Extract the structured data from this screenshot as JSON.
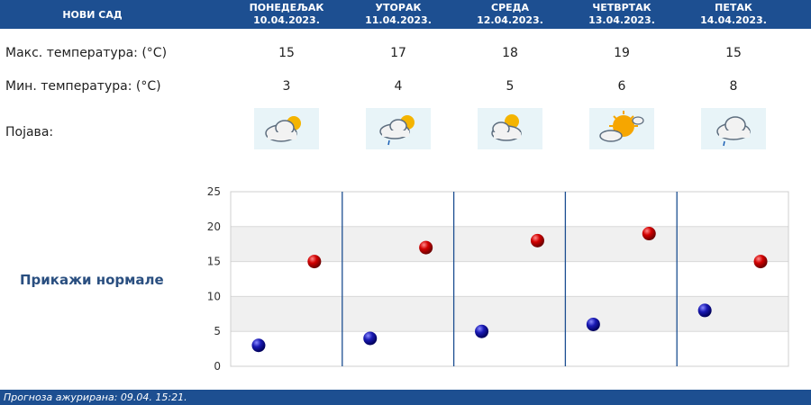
{
  "header": {
    "city": "НОВИ САД",
    "days": [
      {
        "name": "ПОНЕДЕЉАК",
        "date": "10.04.2023."
      },
      {
        "name": "УТОРАК",
        "date": "11.04.2023."
      },
      {
        "name": "СРЕДА",
        "date": "12.04.2023."
      },
      {
        "name": "ЧЕТВРТАК",
        "date": "13.04.2023."
      },
      {
        "name": "ПЕТАК",
        "date": "14.04.2023."
      }
    ]
  },
  "rows": {
    "max_label": "Макс. температура: (°C)",
    "min_label": "Мин. температура: (°C)",
    "phen_label": "Појава:",
    "max_values": [
      "15",
      "17",
      "18",
      "19",
      "15"
    ],
    "min_values": [
      "3",
      "4",
      "5",
      "6",
      "8"
    ],
    "icons": [
      "partly-cloudy-icon",
      "partly-cloudy-drizzle-icon",
      "partly-cloudy-icon",
      "mostly-sunny-icon",
      "cloud-drizzle-icon"
    ]
  },
  "norm_link": "Прикажи нормале",
  "footer": {
    "text": "Прогноза ажурирана:  09.04.  15:21."
  },
  "colors": {
    "header_bg": "#1d4f91",
    "max_marker": "#cc0000",
    "min_marker": "#1a1aaa",
    "separator": "#1d4f91",
    "band": "#f0f0f0"
  },
  "chart_data": {
    "type": "scatter",
    "categories": [
      "10.04.2023.",
      "11.04.2023.",
      "12.04.2023.",
      "13.04.2023.",
      "14.04.2023."
    ],
    "series": [
      {
        "values": [
          15,
          17,
          18,
          19,
          15
        ],
        "color": "#cc0000"
      },
      {
        "values": [
          3,
          4,
          5,
          6,
          8
        ],
        "color": "#1a1aaa"
      }
    ],
    "ylim": [
      0,
      25
    ],
    "yticks": [
      "0",
      "5",
      "10",
      "15",
      "20",
      "25"
    ],
    "grid": true
  }
}
